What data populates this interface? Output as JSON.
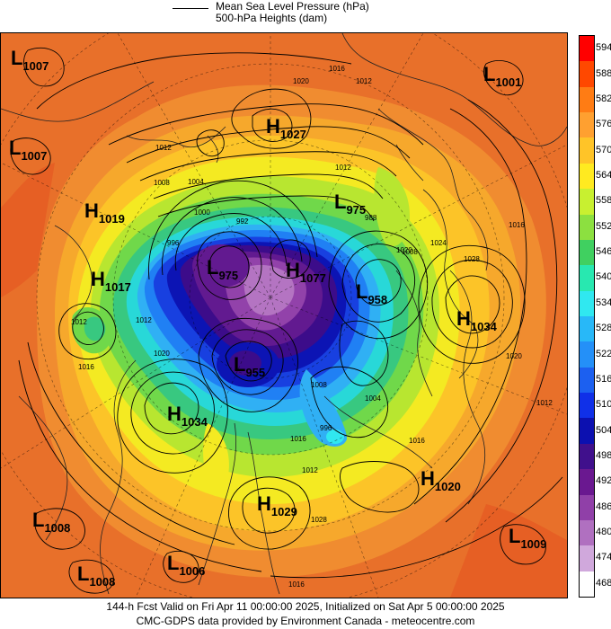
{
  "legend": {
    "mslp_label": "Mean Sea Level Pressure (hPa)",
    "heights_label": "500-hPa Heights (dam)"
  },
  "colorbar": {
    "levels": [
      "594",
      "588",
      "582",
      "576",
      "570",
      "564",
      "558",
      "552",
      "546",
      "540",
      "534",
      "528",
      "522",
      "516",
      "510",
      "504",
      "498",
      "492",
      "486",
      "480",
      "474",
      "468"
    ],
    "colors": [
      "#ff0000",
      "#ff4800",
      "#ff7c14",
      "#ffa030",
      "#ffc428",
      "#ffea20",
      "#c8f030",
      "#8ce040",
      "#40d060",
      "#28e8b0",
      "#30e8f0",
      "#28b8f8",
      "#2490f8",
      "#1c60f0",
      "#1030e8",
      "#0c10b0",
      "#40108c",
      "#6a1890",
      "#9040a8",
      "#b070c0",
      "#d0a8dc",
      "#ffffff"
    ]
  },
  "systems": [
    {
      "type": "L",
      "value": "1007",
      "name": "low-1007-nw"
    },
    {
      "type": "L",
      "value": "1001",
      "name": "low-1001-ne"
    },
    {
      "type": "H",
      "value": "1027",
      "name": "high-1027"
    },
    {
      "type": "L",
      "value": "1007",
      "name": "low-1007-w"
    },
    {
      "type": "L",
      "value": "975",
      "name": "low-975"
    },
    {
      "type": "H",
      "value": "1019",
      "name": "high-1019"
    },
    {
      "type": "L",
      "value": "975",
      "name": "low-975-polar"
    },
    {
      "type": "H",
      "value": "1077",
      "name": "high-1077"
    },
    {
      "type": "H",
      "value": "1017",
      "name": "high-1017"
    },
    {
      "type": "L",
      "value": "958",
      "name": "low-958"
    },
    {
      "type": "H",
      "value": "1034",
      "name": "high-1034-e"
    },
    {
      "type": "L",
      "value": "955",
      "name": "low-955"
    },
    {
      "type": "H",
      "value": "1034",
      "name": "high-1034-w"
    },
    {
      "type": "H",
      "value": "1020",
      "name": "high-1020"
    },
    {
      "type": "H",
      "value": "1029",
      "name": "high-1029"
    },
    {
      "type": "L",
      "value": "1008",
      "name": "low-1008-sw"
    },
    {
      "type": "L",
      "value": "1009",
      "name": "low-1009-se"
    },
    {
      "type": "L",
      "value": "1008",
      "name": "low-1008-s"
    },
    {
      "type": "L",
      "value": "1006",
      "name": "low-1006"
    }
  ],
  "isobar_labels": [
    "1016",
    "1020",
    "1012",
    "1008",
    "1004",
    "1000",
    "992",
    "996",
    "988",
    "1012",
    "1008",
    "1024",
    "1028",
    "1020",
    "1016",
    "1012",
    "1016",
    "1012",
    "1020",
    "1016",
    "1012",
    "1008",
    "1004",
    "996",
    "1028",
    "1012",
    "1016",
    "1012",
    "1020",
    "1016"
  ],
  "footer": {
    "line1": "144-h Fcst Valid on Fri Apr 11 00:00:00 2025, Initialized on Sat Apr  5 00:00:00 2025",
    "line2": "CMC-GDPS data provided by Environment Canada - meteocentre.com"
  }
}
